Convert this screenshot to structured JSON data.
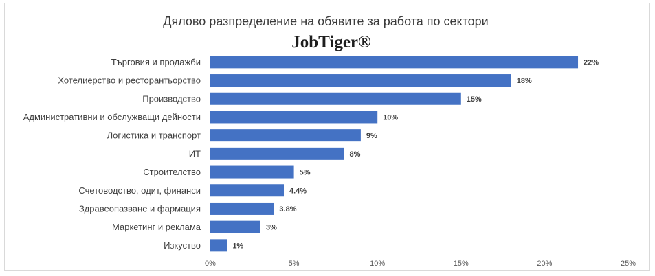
{
  "logo": {
    "text": "JobTiger®"
  },
  "chart_data": {
    "type": "bar",
    "orientation": "horizontal",
    "title": "Дялово разпределение на обявите за работа по сектори",
    "categories": [
      "Търговия и продажби",
      "Хотелиерство и ресторантьорство",
      "Производство",
      "Административни и обслужващи дейности",
      "Логистика и транспорт",
      "ИТ",
      "Строителство",
      "Счетоводство, одит, финанси",
      "Здравеопазване и фармация",
      "Маркетинг и реклама",
      "Изкуство"
    ],
    "values": [
      22,
      18,
      15,
      10,
      9,
      8,
      5,
      4.4,
      3.8,
      3,
      1
    ],
    "data_labels": [
      "22%",
      "18%",
      "15%",
      "10%",
      "9%",
      "8%",
      "5%",
      "4.4%",
      "3.8%",
      "3%",
      "1%"
    ],
    "x_ticks": [
      "0%",
      "5%",
      "10%",
      "15%",
      "20%",
      "25%"
    ],
    "xlim": [
      0,
      25
    ],
    "grid": false,
    "legend": "none",
    "bar_color": "#4472c4",
    "xlabel": "",
    "ylabel": ""
  }
}
